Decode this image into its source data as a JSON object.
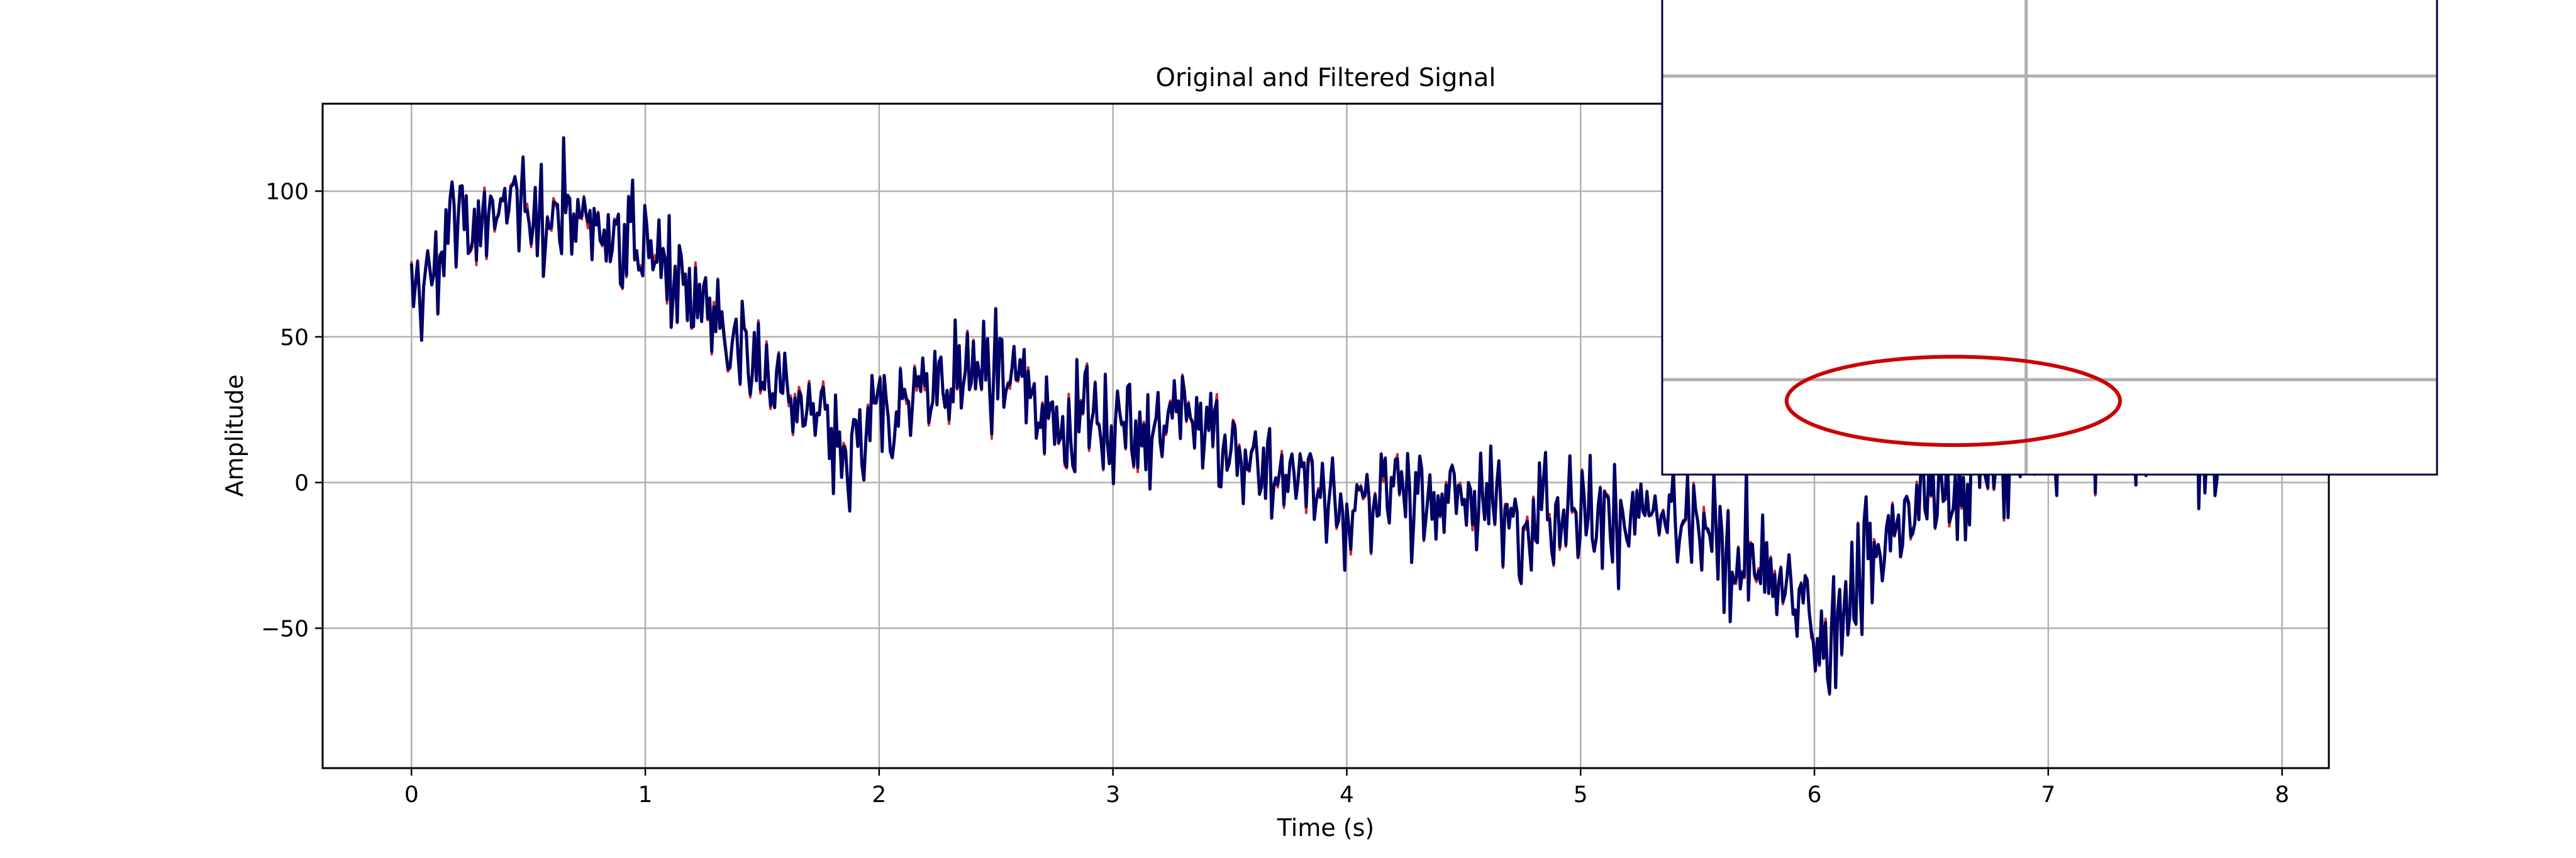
{
  "chart_data": {
    "type": "line",
    "title": "Original and Filtered Signal",
    "xlabel": "Time (s)",
    "ylabel": "Amplitude",
    "xlim": [
      -0.38,
      8.2
    ],
    "ylim": [
      -98,
      130
    ],
    "xticks": [
      0,
      1,
      2,
      3,
      4,
      5,
      6,
      7,
      8
    ],
    "xtick_labels": [
      "0",
      "1",
      "2",
      "3",
      "4",
      "5",
      "6",
      "7",
      "8"
    ],
    "yticks": [
      -50,
      0,
      50,
      100
    ],
    "ytick_labels": [
      "−50",
      "0",
      "50",
      "100"
    ],
    "grid": true,
    "legend": "none",
    "colors": {
      "original": "#d62728",
      "filtered": "#000066",
      "highlight": "#cc0000",
      "grid": "#b0b0b0"
    },
    "trend": {
      "description_points_x": [
        0,
        0.2,
        0.6,
        0.9,
        1.1,
        1.4,
        1.7,
        1.85,
        2.0,
        2.4,
        2.7,
        3.0,
        3.3,
        3.6,
        4.0,
        4.4,
        4.8,
        5.2,
        5.6,
        5.9,
        6.05,
        6.2,
        6.5,
        6.8,
        7.1,
        7.4,
        7.8
      ],
      "description_points_y": [
        62,
        90,
        92,
        86,
        75,
        45,
        25,
        5,
        22,
        38,
        27,
        18,
        20,
        8,
        -8,
        -5,
        -8,
        -10,
        -18,
        -40,
        -55,
        -30,
        -5,
        10,
        15,
        20,
        15
      ]
    },
    "noise_amplitude": 14,
    "series": [
      {
        "x_range": [
          0,
          7.8
        ],
        "n_points": 900
      },
      {
        "x_range": [
          0,
          7.8
        ],
        "n_points": 900
      }
    ],
    "annotations": [
      {
        "type": "ellipse",
        "cx": 6.69,
        "cy": -61,
        "rx": 0.71,
        "ry": 15
      }
    ],
    "inset": {
      "type": "zoomed-view",
      "xlim": [
        5.45,
        8.75
      ],
      "ylim": [
        -86,
        75
      ],
      "y_center_shift": 128
    }
  }
}
